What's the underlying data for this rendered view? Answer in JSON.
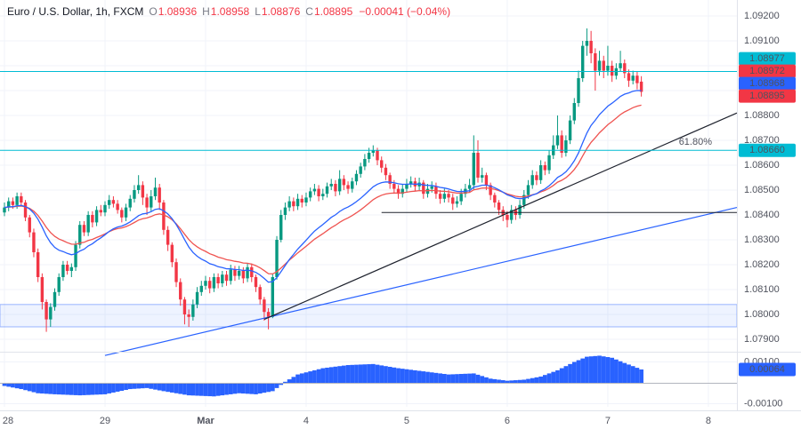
{
  "header": {
    "symbol_title": "Euro / U.S. Dollar, 1h, FXCM",
    "ohlc": {
      "o_label": "O",
      "o": "1.08936",
      "h_label": "H",
      "h": "1.08958",
      "l_label": "L",
      "l": "1.08876",
      "c_label": "C",
      "c": "1.08895",
      "change": "−0.00041 (−0.04%)"
    }
  },
  "colors": {
    "up": "#089981",
    "down": "#f23645",
    "ma_fast": "#2962ff",
    "ma_slow": "#ef5350",
    "level": "#00bcd4",
    "histogram": "#2962ff",
    "grid": "#f0f3fa",
    "axis_text": "#50535e",
    "text": "#131722",
    "border": "#e0e3eb",
    "trendline": "#1e222d",
    "zone_fill": "rgba(41,98,255,0.08)",
    "zone_border": "rgba(41,98,255,0.45)"
  },
  "price_axis": {
    "labels": [
      {
        "text": "1.09200",
        "price": 1.092
      },
      {
        "text": "1.09100",
        "price": 1.091
      },
      {
        "text": "1.08800",
        "price": 1.088
      },
      {
        "text": "1.08700",
        "price": 1.087
      },
      {
        "text": "1.08600",
        "price": 1.086
      },
      {
        "text": "1.08500",
        "price": 1.085
      },
      {
        "text": "1.08400",
        "price": 1.084
      },
      {
        "text": "1.08300",
        "price": 1.083
      },
      {
        "text": "1.08200",
        "price": 1.082
      },
      {
        "text": "1.08100",
        "price": 1.081
      },
      {
        "text": "1.08000",
        "price": 1.08
      },
      {
        "text": "1.07900",
        "price": 1.079
      }
    ],
    "chips": [
      {
        "name": "level-line-price-chip",
        "text": "1.08977",
        "price": 1.08977,
        "bg": "#00bcd4"
      },
      {
        "name": "ma-slow-price-chip",
        "text": "1.08972",
        "price": 1.08972,
        "bg": "#f23645"
      },
      {
        "name": "ma-fast-price-chip",
        "text": "1.08968",
        "price": 1.08968,
        "bg": "#2962ff"
      },
      {
        "name": "last-price-chip",
        "text": "1.08895",
        "price": 1.08895,
        "bg": "#f23645"
      },
      {
        "name": "fib-level-price-chip",
        "text": "1.08660",
        "price": 1.0866,
        "bg": "#00bcd4"
      }
    ]
  },
  "time_axis": {
    "labels": [
      {
        "text": "28",
        "index": 0,
        "bold": false
      },
      {
        "text": "29",
        "index": 24,
        "bold": false
      },
      {
        "text": "Mar",
        "index": 48,
        "bold": true
      },
      {
        "text": "4",
        "index": 72,
        "bold": false
      },
      {
        "text": "5",
        "index": 96,
        "bold": false
      },
      {
        "text": "6",
        "index": 120,
        "bold": false
      },
      {
        "text": "7",
        "index": 144,
        "bold": false
      },
      {
        "text": "8",
        "index": 168,
        "bold": false
      }
    ]
  },
  "indicator_axis": {
    "labels": [
      {
        "text": "0.00100",
        "value": 0.001
      },
      {
        "text": "-0.00100",
        "value": -0.001
      }
    ],
    "current": {
      "text": "0.00064",
      "value": 0.00064,
      "bg": "#2962ff"
    }
  },
  "annotations": {
    "fib_label": "61.80%"
  },
  "chart_data": {
    "type": "candlestick",
    "timeframe": "1h",
    "price_range_visible": [
      1.079,
      1.092
    ],
    "candles": [
      [
        1.0841,
        1.0845,
        1.08395,
        1.0843
      ],
      [
        1.0843,
        1.0847,
        1.08415,
        1.08455
      ],
      [
        1.08455,
        1.0847,
        1.08425,
        1.0844
      ],
      [
        1.0844,
        1.0849,
        1.08425,
        1.08475
      ],
      [
        1.08475,
        1.0849,
        1.08435,
        1.0845
      ],
      [
        1.0845,
        1.0846,
        1.08375,
        1.0839
      ],
      [
        1.0839,
        1.084,
        1.0831,
        1.0833
      ],
      [
        1.0833,
        1.08345,
        1.0823,
        1.0825
      ],
      [
        1.0825,
        1.08265,
        1.0813,
        1.0815
      ],
      [
        1.0815,
        1.08165,
        1.0802,
        1.0805
      ],
      [
        1.0805,
        1.0806,
        1.0793,
        1.0798
      ],
      [
        1.0798,
        1.08045,
        1.0795,
        1.0803
      ],
      [
        1.0803,
        1.08105,
        1.08015,
        1.0809
      ],
      [
        1.0809,
        1.08165,
        1.08075,
        1.0815
      ],
      [
        1.0815,
        1.08215,
        1.08135,
        1.082
      ],
      [
        1.082,
        1.08215,
        1.0816,
        1.08175
      ],
      [
        1.08175,
        1.08205,
        1.0815,
        1.0819
      ],
      [
        1.0819,
        1.08295,
        1.08175,
        1.0828
      ],
      [
        1.0828,
        1.08375,
        1.08265,
        1.0836
      ],
      [
        1.0836,
        1.08375,
        1.08315,
        1.0833
      ],
      [
        1.0833,
        1.08415,
        1.08315,
        1.084
      ],
      [
        1.084,
        1.08415,
        1.0835,
        1.0837
      ],
      [
        1.0837,
        1.08435,
        1.08355,
        1.0842
      ],
      [
        1.0842,
        1.0844,
        1.08395,
        1.0841
      ],
      [
        1.0841,
        1.08455,
        1.08395,
        1.0844
      ],
      [
        1.0844,
        1.0848,
        1.08425,
        1.0846
      ],
      [
        1.0846,
        1.08475,
        1.0843,
        1.08445
      ],
      [
        1.08445,
        1.0846,
        1.08405,
        1.0842
      ],
      [
        1.0842,
        1.0843,
        1.0837,
        1.0839
      ],
      [
        1.0839,
        1.08445,
        1.08375,
        1.0843
      ],
      [
        1.0843,
        1.0848,
        1.08415,
        1.08465
      ],
      [
        1.08465,
        1.0852,
        1.0845,
        1.085
      ],
      [
        1.085,
        1.0856,
        1.08485,
        1.0852
      ],
      [
        1.0852,
        1.08535,
        1.0844,
        1.0847
      ],
      [
        1.0847,
        1.08485,
        1.084,
        1.0843
      ],
      [
        1.0843,
        1.085,
        1.08415,
        1.08475
      ],
      [
        1.08475,
        1.0855,
        1.0846,
        1.0851
      ],
      [
        1.0851,
        1.08525,
        1.0842,
        1.0845
      ],
      [
        1.0845,
        1.0846,
        1.0832,
        1.0834
      ],
      [
        1.0834,
        1.08355,
        1.08255,
        1.0828
      ],
      [
        1.0828,
        1.0829,
        1.0819,
        1.0821
      ],
      [
        1.0821,
        1.08225,
        1.0811,
        1.0813
      ],
      [
        1.0813,
        1.08145,
        1.08035,
        1.0806
      ],
      [
        1.0806,
        1.0807,
        1.0796,
        1.08
      ],
      [
        1.08,
        1.0802,
        1.0795,
        1.0799
      ],
      [
        1.0799,
        1.0806,
        1.07975,
        1.0804
      ],
      [
        1.0804,
        1.0811,
        1.08025,
        1.0809
      ],
      [
        1.0809,
        1.08135,
        1.08075,
        1.08115
      ],
      [
        1.08115,
        1.08155,
        1.081,
        1.08135
      ],
      [
        1.08135,
        1.0815,
        1.08085,
        1.08105
      ],
      [
        1.08105,
        1.08165,
        1.0809,
        1.0815
      ],
      [
        1.0815,
        1.08165,
        1.08105,
        1.08125
      ],
      [
        1.08125,
        1.08175,
        1.0811,
        1.0816
      ],
      [
        1.0816,
        1.08175,
        1.08115,
        1.08135
      ],
      [
        1.08135,
        1.082,
        1.0812,
        1.0818
      ],
      [
        1.0818,
        1.08195,
        1.08135,
        1.08155
      ],
      [
        1.08155,
        1.08195,
        1.0814,
        1.08175
      ],
      [
        1.08175,
        1.0819,
        1.08125,
        1.08145
      ],
      [
        1.08145,
        1.08205,
        1.0813,
        1.0819
      ],
      [
        1.0819,
        1.08205,
        1.0813,
        1.0815
      ],
      [
        1.0815,
        1.0816,
        1.0809,
        1.0811
      ],
      [
        1.0811,
        1.0812,
        1.0804,
        1.0806
      ],
      [
        1.0806,
        1.0807,
        1.07975,
        1.0801
      ],
      [
        1.0801,
        1.08025,
        1.0794,
        1.0799
      ],
      [
        1.0799,
        1.08165,
        1.07985,
        1.0815
      ],
      [
        1.0815,
        1.08315,
        1.0814,
        1.083
      ],
      [
        1.083,
        1.0842,
        1.0829,
        1.084
      ],
      [
        1.084,
        1.0845,
        1.0838,
        1.0843
      ],
      [
        1.0843,
        1.08475,
        1.08415,
        1.08455
      ],
      [
        1.08455,
        1.0847,
        1.08415,
        1.08435
      ],
      [
        1.08435,
        1.08485,
        1.0842,
        1.08465
      ],
      [
        1.08465,
        1.0848,
        1.0843,
        1.0845
      ],
      [
        1.0845,
        1.0849,
        1.08435,
        1.0847
      ],
      [
        1.0847,
        1.0851,
        1.08455,
        1.08495
      ],
      [
        1.08495,
        1.08525,
        1.0848,
        1.08505
      ],
      [
        1.08505,
        1.0852,
        1.08455,
        1.08475
      ],
      [
        1.08475,
        1.08505,
        1.0846,
        1.08485
      ],
      [
        1.08485,
        1.0853,
        1.0847,
        1.08515
      ],
      [
        1.08515,
        1.08545,
        1.085,
        1.08525
      ],
      [
        1.08525,
        1.0854,
        1.08475,
        1.08495
      ],
      [
        1.08495,
        1.0858,
        1.0848,
        1.08545
      ],
      [
        1.08545,
        1.0856,
        1.085,
        1.0852
      ],
      [
        1.0852,
        1.08535,
        1.08485,
        1.08505
      ],
      [
        1.08505,
        1.0855,
        1.0849,
        1.08535
      ],
      [
        1.08535,
        1.0858,
        1.0852,
        1.08565
      ],
      [
        1.08565,
        1.0861,
        1.0855,
        1.08595
      ],
      [
        1.08595,
        1.08645,
        1.0858,
        1.08625
      ],
      [
        1.08625,
        1.0867,
        1.0861,
        1.0865
      ],
      [
        1.0865,
        1.0868,
        1.08635,
        1.0866
      ],
      [
        1.0866,
        1.0867,
        1.086,
        1.0862
      ],
      [
        1.0862,
        1.08635,
        1.0857,
        1.0859
      ],
      [
        1.0859,
        1.08605,
        1.0854,
        1.0856
      ],
      [
        1.0856,
        1.0857,
        1.08505,
        1.08525
      ],
      [
        1.08525,
        1.0854,
        1.08485,
        1.08505
      ],
      [
        1.08505,
        1.0852,
        1.08465,
        1.08485
      ],
      [
        1.08485,
        1.08525,
        1.0847,
        1.08505
      ],
      [
        1.08505,
        1.08545,
        1.0849,
        1.08525
      ],
      [
        1.08525,
        1.08555,
        1.0851,
        1.08535
      ],
      [
        1.08535,
        1.0855,
        1.08495,
        1.08515
      ],
      [
        1.08515,
        1.0855,
        1.085,
        1.0853
      ],
      [
        1.0853,
        1.0854,
        1.08465,
        1.08485
      ],
      [
        1.08485,
        1.08525,
        1.0847,
        1.08505
      ],
      [
        1.08505,
        1.08535,
        1.0849,
        1.08515
      ],
      [
        1.08515,
        1.0853,
        1.08465,
        1.08485
      ],
      [
        1.08485,
        1.085,
        1.08445,
        1.08465
      ],
      [
        1.08465,
        1.08505,
        1.0845,
        1.08485
      ],
      [
        1.08485,
        1.085,
        1.0845,
        1.0847
      ],
      [
        1.0847,
        1.08485,
        1.0842,
        1.08445
      ],
      [
        1.08445,
        1.08475,
        1.0843,
        1.08455
      ],
      [
        1.08455,
        1.08505,
        1.0844,
        1.08485
      ],
      [
        1.08485,
        1.08525,
        1.0847,
        1.08505
      ],
      [
        1.08505,
        1.08545,
        1.0849,
        1.0852
      ],
      [
        1.0852,
        1.0872,
        1.085,
        1.0865
      ],
      [
        1.0865,
        1.087,
        1.0853,
        1.0855
      ],
      [
        1.0855,
        1.0859,
        1.0853,
        1.0856
      ],
      [
        1.0856,
        1.0857,
        1.085,
        1.0852
      ],
      [
        1.0852,
        1.0853,
        1.0846,
        1.0848
      ],
      [
        1.0848,
        1.0849,
        1.0843,
        1.0845
      ],
      [
        1.0845,
        1.0846,
        1.084,
        1.0842
      ],
      [
        1.0842,
        1.08435,
        1.08375,
        1.084
      ],
      [
        1.084,
        1.08415,
        1.0835,
        1.0838
      ],
      [
        1.0838,
        1.0844,
        1.08365,
        1.0842
      ],
      [
        1.0842,
        1.08435,
        1.0838,
        1.084
      ],
      [
        1.084,
        1.0846,
        1.08385,
        1.0844
      ],
      [
        1.0844,
        1.085,
        1.08425,
        1.0848
      ],
      [
        1.0848,
        1.0854,
        1.08465,
        1.0852
      ],
      [
        1.0852,
        1.0858,
        1.08505,
        1.0856
      ],
      [
        1.0856,
        1.08575,
        1.0852,
        1.0854
      ],
      [
        1.0854,
        1.0862,
        1.08525,
        1.086
      ],
      [
        1.086,
        1.08615,
        1.0856,
        1.0858
      ],
      [
        1.0858,
        1.0866,
        1.08565,
        1.0864
      ],
      [
        1.0864,
        1.0872,
        1.08625,
        1.0868
      ],
      [
        1.0868,
        1.088,
        1.08665,
        1.0872
      ],
      [
        1.0872,
        1.0874,
        1.0863,
        1.0865
      ],
      [
        1.0865,
        1.0872,
        1.08635,
        1.087
      ],
      [
        1.087,
        1.088,
        1.08685,
        1.0878
      ],
      [
        1.0878,
        1.0887,
        1.08765,
        1.0885
      ],
      [
        1.0885,
        1.0898,
        1.08835,
        1.0895
      ],
      [
        1.0895,
        1.091,
        1.08935,
        1.0908
      ],
      [
        1.0908,
        1.0915,
        1.0904,
        1.091
      ],
      [
        1.091,
        1.0914,
        1.0901,
        1.0905
      ],
      [
        1.0905,
        1.0907,
        1.089,
        1.0898
      ],
      [
        1.0898,
        1.0906,
        1.0896,
        1.0902
      ],
      [
        1.0902,
        1.0904,
        1.0895,
        1.0898
      ],
      [
        1.0898,
        1.0908,
        1.0896,
        1.09
      ],
      [
        1.09,
        1.0902,
        1.08935,
        1.0896
      ],
      [
        1.0896,
        1.0901,
        1.08945,
        1.0899
      ],
      [
        1.0899,
        1.0906,
        1.08975,
        1.0901
      ],
      [
        1.0901,
        1.09025,
        1.0895,
        1.0897
      ],
      [
        1.0897,
        1.08985,
        1.08915,
        1.0894
      ],
      [
        1.0894,
        1.0898,
        1.08925,
        1.0896
      ],
      [
        1.0896,
        1.08975,
        1.08905,
        1.0893
      ],
      [
        1.08936,
        1.08958,
        1.08876,
        1.08895
      ]
    ],
    "overlays": {
      "ma_fast": {
        "estimated_period": 20,
        "color": "#2962ff",
        "last_axis_value": "1.08968"
      },
      "ma_slow": {
        "estimated_period": 30,
        "color": "#ef5350",
        "last_axis_value": "1.08972"
      }
    },
    "drawings": {
      "level_upper": {
        "type": "hline",
        "color": "#00bcd4",
        "price": 1.08977
      },
      "fib_618": {
        "type": "fib-level",
        "color": "#00bcd4",
        "price": 1.0866,
        "label": "61.80%"
      },
      "trendline_primary": {
        "type": "trendline",
        "color": "#1e222d",
        "from": {
          "index": 62,
          "price": 1.0798
        },
        "to": {
          "index": 175,
          "price": 1.0881
        }
      },
      "trendline_secondary": {
        "type": "trendline",
        "color": "#2962ff",
        "from": {
          "index": 24,
          "price": 1.07835
        },
        "to": {
          "index": 175,
          "price": 1.0843
        }
      },
      "horizontal_segment": {
        "type": "hline-segment",
        "color": "#1e222d",
        "price": 1.0841,
        "from_index": 90,
        "to_index": 175
      },
      "zone_band": {
        "type": "rect",
        "price_top": 1.0804,
        "price_bottom": 1.0795
      }
    },
    "histogram_pane": {
      "style": "area-histogram",
      "color": "#2962ff",
      "axis_range": [
        -0.001,
        0.001
      ],
      "last_value": 0.00064,
      "keypoints": [
        [
          0,
          -0.00015
        ],
        [
          4,
          -0.0003
        ],
        [
          8,
          -0.0005
        ],
        [
          12,
          -0.00055
        ],
        [
          18,
          -0.0006
        ],
        [
          24,
          -0.00055
        ],
        [
          30,
          -0.0003
        ],
        [
          34,
          -0.00025
        ],
        [
          38,
          -0.0004
        ],
        [
          44,
          -0.0006
        ],
        [
          50,
          -0.00065
        ],
        [
          56,
          -0.0005
        ],
        [
          60,
          -0.00055
        ],
        [
          64,
          -0.0004
        ],
        [
          66,
          -0.0001
        ],
        [
          67,
          5e-05
        ],
        [
          70,
          0.0004
        ],
        [
          76,
          0.0007
        ],
        [
          82,
          0.00085
        ],
        [
          88,
          0.0009
        ],
        [
          94,
          0.0007
        ],
        [
          100,
          0.00055
        ],
        [
          106,
          0.0004
        ],
        [
          112,
          0.00045
        ],
        [
          116,
          0.0002
        ],
        [
          120,
          0.0001
        ],
        [
          124,
          0.00015
        ],
        [
          128,
          0.0003
        ],
        [
          132,
          0.0006
        ],
        [
          136,
          0.001
        ],
        [
          139,
          0.00125
        ],
        [
          142,
          0.0013
        ],
        [
          145,
          0.0012
        ],
        [
          148,
          0.00095
        ],
        [
          150,
          0.0008
        ],
        [
          152,
          0.00064
        ]
      ]
    }
  }
}
